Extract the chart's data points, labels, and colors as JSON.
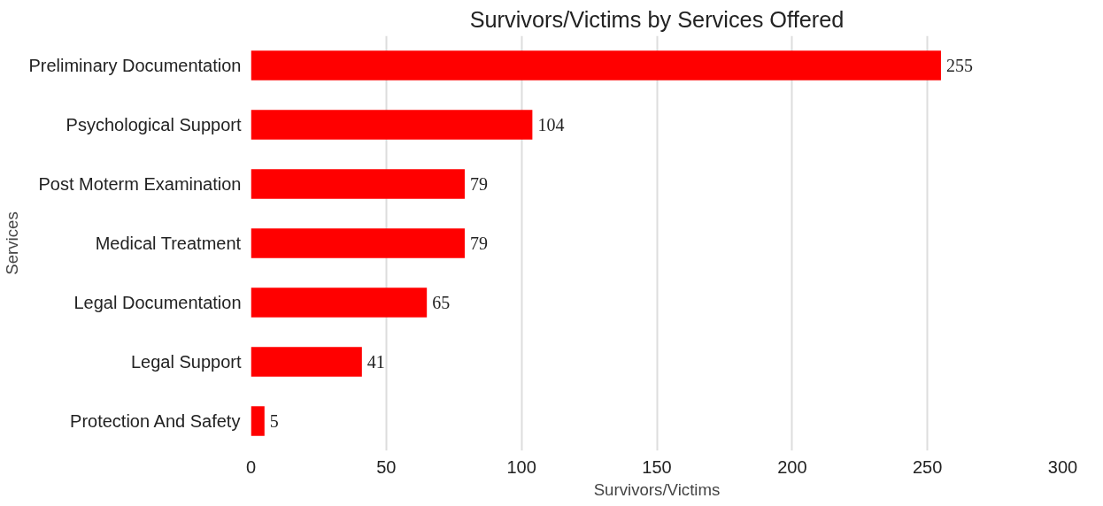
{
  "chart_data": {
    "type": "bar",
    "orientation": "horizontal",
    "title": "Survivors/Victims by Services Offered",
    "xlabel": "Survivors/Victims",
    "ylabel": "Services",
    "categories": [
      "Preliminary Documentation",
      "Psychological Support",
      "Post Moterm Examination",
      "Medical Treatment",
      "Legal Documentation",
      "Legal Support",
      "Protection And Safety"
    ],
    "values": [
      255,
      104,
      79,
      79,
      65,
      41,
      5
    ],
    "color": "#ff0000",
    "xlim": [
      0,
      300
    ],
    "xticks": [
      0,
      50,
      100,
      150,
      200,
      250,
      300
    ],
    "grid": "x",
    "data_labels": true
  }
}
